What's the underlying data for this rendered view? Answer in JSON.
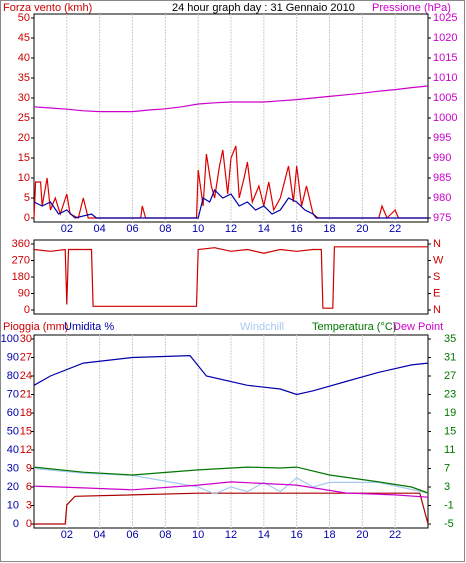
{
  "chart_data": [
    {
      "type": "line",
      "title": "24 hour graph day : 31 Gennaio 2010",
      "ylabel": "Forza vento (kmh)",
      "y2label": "Pressione (hPa)",
      "xlim": [
        0,
        24
      ],
      "xticks": [
        {
          "value": 2,
          "label": "02"
        },
        {
          "value": 4,
          "label": "04"
        },
        {
          "value": 6,
          "label": "06"
        },
        {
          "value": 8,
          "label": "08"
        },
        {
          "value": 10,
          "label": "10"
        },
        {
          "value": 12,
          "label": "12"
        },
        {
          "value": 14,
          "label": "14"
        },
        {
          "value": 16,
          "label": "16"
        },
        {
          "value": 18,
          "label": "18"
        },
        {
          "value": 20,
          "label": "20"
        },
        {
          "value": 22,
          "label": "22"
        }
      ],
      "ylim": [
        0,
        50
      ],
      "yticks": [
        0,
        5,
        10,
        15,
        20,
        25,
        30,
        35,
        40,
        45,
        50
      ],
      "y2lim": [
        975,
        1025
      ],
      "y2ticks": [
        975,
        980,
        985,
        990,
        995,
        1000,
        1005,
        1010,
        1015,
        1020,
        1025
      ],
      "grid": true,
      "series": [
        {
          "color": "#dd0000",
          "axis": "y",
          "x": [
            0,
            0.1,
            0.4,
            0.5,
            0.8,
            1,
            1.3,
            1.6,
            2,
            2.2,
            2.7,
            3,
            3.3,
            6.5,
            6.6,
            6.8,
            9.9,
            10,
            10.3,
            10.5,
            10.8,
            11,
            11.3,
            11.5,
            11.8,
            12,
            12.3,
            12.5,
            12.8,
            13,
            13.3,
            13.7,
            14,
            14.3,
            14.6,
            15,
            15.5,
            15.8,
            16,
            16.3,
            16.6,
            17,
            17.3,
            21,
            21.2,
            21.5,
            22,
            22.2,
            24
          ],
          "values": [
            0,
            9,
            9,
            3,
            10,
            2,
            5,
            1,
            6,
            1,
            0,
            5,
            0,
            0,
            3,
            0,
            0,
            12,
            3,
            16,
            8,
            5,
            13,
            17,
            6,
            15,
            18,
            5,
            10,
            14,
            4,
            8,
            3,
            9,
            2,
            5,
            13,
            4,
            13,
            3,
            8,
            1,
            0,
            0,
            3,
            0,
            2,
            0,
            0
          ]
        },
        {
          "color": "#0000aa",
          "axis": "y",
          "x": [
            0,
            0.5,
            1,
            1.5,
            2,
            2.5,
            3.5,
            3.8,
            10,
            10.3,
            10.7,
            11,
            11.5,
            12,
            12.5,
            13,
            13.5,
            14,
            14.5,
            15,
            15.5,
            16,
            16.5,
            17,
            17.2,
            24
          ],
          "values": [
            4,
            3,
            4,
            1,
            2,
            0,
            1,
            0,
            0,
            5,
            4,
            7,
            5,
            6,
            3,
            4,
            2,
            3,
            1,
            2,
            5,
            4,
            2,
            1,
            0,
            0
          ]
        },
        {
          "color": "#cc00cc",
          "axis": "y2",
          "x": [
            0,
            1,
            2,
            3,
            4,
            5,
            6,
            7,
            8,
            9,
            10,
            11,
            12,
            13,
            14,
            15,
            16,
            17,
            18,
            19,
            20,
            21,
            22,
            23,
            24
          ],
          "values": [
            1002.8,
            1002.5,
            1002.2,
            1001.8,
            1001.6,
            1001.6,
            1001.6,
            1002,
            1002.3,
            1002.8,
            1003.5,
            1003.8,
            1004,
            1004,
            1004,
            1004.3,
            1004.6,
            1005,
            1005.4,
            1005.8,
            1006.2,
            1006.7,
            1007.1,
            1007.6,
            1008
          ]
        }
      ]
    },
    {
      "type": "line",
      "xlim": [
        0,
        24
      ],
      "ylim": [
        0,
        360
      ],
      "yticks": [
        0,
        90,
        180,
        270,
        360
      ],
      "y2lim": [
        0,
        360
      ],
      "y2ticks": [
        {
          "value": 360,
          "label": "N"
        },
        {
          "value": 270,
          "label": "W"
        },
        {
          "value": 180,
          "label": "S"
        },
        {
          "value": 90,
          "label": "E"
        },
        {
          "value": 0,
          "label": "N"
        }
      ],
      "series": [
        {
          "color": "#cc0000",
          "axis": "y",
          "x": [
            0,
            1,
            1.9,
            2,
            2.1,
            3,
            3.5,
            3.6,
            9.9,
            10,
            11,
            12,
            13,
            14,
            15,
            16,
            17,
            17.5,
            17.6,
            18.2,
            18.3,
            24
          ],
          "values": [
            330,
            320,
            330,
            30,
            330,
            330,
            330,
            20,
            20,
            330,
            340,
            320,
            330,
            310,
            330,
            320,
            330,
            330,
            10,
            10,
            345,
            345
          ]
        }
      ]
    },
    {
      "type": "line",
      "xlim": [
        0,
        24
      ],
      "xticks": [
        {
          "value": 2,
          "label": "02"
        },
        {
          "value": 4,
          "label": "04"
        },
        {
          "value": 6,
          "label": "06"
        },
        {
          "value": 8,
          "label": "08"
        },
        {
          "value": 10,
          "label": "10"
        },
        {
          "value": 12,
          "label": "12"
        },
        {
          "value": 14,
          "label": "14"
        },
        {
          "value": 16,
          "label": "16"
        },
        {
          "value": 18,
          "label": "18"
        },
        {
          "value": 20,
          "label": "20"
        },
        {
          "value": 22,
          "label": "22"
        }
      ],
      "ylim": [
        0,
        100
      ],
      "yticks": [
        0,
        10,
        20,
        30,
        40,
        50,
        60,
        70,
        80,
        90,
        100
      ],
      "y3lim": [
        0,
        30
      ],
      "y3ticks": [
        0,
        3,
        6,
        9,
        12,
        15,
        18,
        21,
        24,
        27,
        30
      ],
      "y2lim": [
        -5,
        35
      ],
      "y2ticks": [
        -5,
        -1,
        3,
        7,
        11,
        15,
        19,
        23,
        27,
        31,
        35
      ],
      "grid": true,
      "series": [
        {
          "name": "Pioggia (mm)",
          "color": "#aa0000",
          "axis": "y3",
          "x": [
            0,
            1.9,
            2,
            2.5,
            10,
            23.5,
            24
          ],
          "values": [
            0,
            0,
            3.1,
            4.5,
            5,
            5,
            0
          ]
        },
        {
          "name": "Umidita %",
          "color": "#0000aa",
          "axis": "y",
          "x": [
            0,
            1,
            3,
            6,
            9.5,
            10.5,
            13,
            15,
            16,
            17,
            19,
            21,
            23,
            24
          ],
          "values": [
            75,
            80,
            87,
            90,
            91,
            80,
            75,
            73,
            70,
            72,
            77,
            82,
            86,
            87
          ]
        },
        {
          "name": "Windchill",
          "color": "#a8c8f0",
          "axis": "y2",
          "x": [
            0,
            3,
            6,
            10,
            11,
            12,
            13,
            14,
            15,
            16,
            17,
            18,
            21,
            24
          ],
          "values": [
            7,
            6,
            5.5,
            3,
            1.5,
            3,
            2,
            4,
            2,
            5,
            3,
            4,
            4,
            1.7
          ]
        },
        {
          "name": "Temperatura (°C)",
          "color": "#007700",
          "axis": "y2",
          "x": [
            0,
            3,
            6,
            10,
            13,
            15,
            16,
            18,
            21,
            23,
            24
          ],
          "values": [
            7.3,
            6.2,
            5.6,
            6.7,
            7.3,
            7.1,
            7.3,
            5.6,
            4.1,
            3,
            1.7
          ]
        },
        {
          "name": "Dew Point",
          "color": "#cc00cc",
          "axis": "y2",
          "x": [
            0,
            3,
            6,
            10,
            12,
            16,
            19,
            22,
            24
          ],
          "values": [
            3.2,
            2.8,
            2.4,
            3.4,
            4.1,
            3.4,
            1.7,
            1.3,
            0.8
          ]
        }
      ]
    }
  ]
}
